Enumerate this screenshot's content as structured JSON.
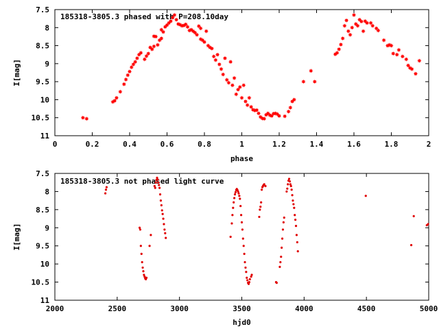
{
  "chart_data": [
    {
      "type": "scatter",
      "title": "185318-3805.3 phased with P=208.10day",
      "xlabel": "phase",
      "ylabel": "I[mag]",
      "xlim": [
        0,
        2
      ],
      "ylim": [
        7.5,
        11
      ],
      "y_inverted": true,
      "xticks": [
        "0",
        "0.2",
        "0.4",
        "0.6",
        "0.8",
        "1",
        "1.2",
        "1.4",
        "1.6",
        "1.8",
        "2"
      ],
      "yticks": [
        "7.5",
        "8",
        "8.5",
        "9",
        "9.5",
        "10",
        "10.5",
        "11"
      ],
      "marker_color": "#ff0000",
      "marker": "star",
      "series": [
        {
          "points": [
            [
              0.15,
              10.5
            ],
            [
              0.17,
              10.53
            ],
            [
              0.31,
              10.06
            ],
            [
              0.32,
              10.03
            ],
            [
              0.33,
              9.95
            ],
            [
              0.35,
              9.78
            ],
            [
              0.37,
              9.57
            ],
            [
              0.38,
              9.44
            ],
            [
              0.39,
              9.32
            ],
            [
              0.4,
              9.22
            ],
            [
              0.41,
              9.1
            ],
            [
              0.42,
              9.02
            ],
            [
              0.43,
              8.95
            ],
            [
              0.44,
              8.85
            ],
            [
              0.45,
              8.75
            ],
            [
              0.46,
              8.7
            ],
            [
              0.48,
              8.88
            ],
            [
              0.49,
              8.79
            ],
            [
              0.5,
              8.72
            ],
            [
              0.51,
              8.55
            ],
            [
              0.52,
              8.6
            ],
            [
              0.53,
              8.52
            ],
            [
              0.53,
              8.24
            ],
            [
              0.54,
              8.25
            ],
            [
              0.55,
              8.48
            ],
            [
              0.56,
              8.35
            ],
            [
              0.57,
              8.3
            ],
            [
              0.57,
              8.06
            ],
            [
              0.58,
              8.12
            ],
            [
              0.59,
              7.98
            ],
            [
              0.6,
              7.93
            ],
            [
              0.61,
              7.87
            ],
            [
              0.62,
              7.82
            ],
            [
              0.63,
              7.72
            ],
            [
              0.64,
              7.65
            ],
            [
              0.65,
              7.78
            ],
            [
              0.66,
              7.9
            ],
            [
              0.67,
              7.92
            ],
            [
              0.68,
              7.95
            ],
            [
              0.69,
              7.94
            ],
            [
              0.7,
              7.91
            ],
            [
              0.71,
              7.98
            ],
            [
              0.72,
              8.08
            ],
            [
              0.73,
              8.06
            ],
            [
              0.74,
              8.1
            ],
            [
              0.75,
              8.14
            ],
            [
              0.76,
              8.2
            ],
            [
              0.77,
              7.96
            ],
            [
              0.78,
              8.32
            ],
            [
              0.78,
              8.02
            ],
            [
              0.79,
              8.35
            ],
            [
              0.8,
              8.4
            ],
            [
              0.81,
              8.1
            ],
            [
              0.82,
              8.5
            ],
            [
              0.83,
              8.55
            ],
            [
              0.84,
              8.58
            ],
            [
              0.85,
              8.8
            ],
            [
              0.86,
              8.9
            ],
            [
              0.87,
              8.75
            ],
            [
              0.88,
              9.02
            ],
            [
              0.89,
              9.15
            ],
            [
              0.9,
              9.3
            ],
            [
              0.91,
              8.85
            ],
            [
              0.92,
              9.45
            ],
            [
              0.93,
              9.53
            ],
            [
              0.94,
              8.95
            ],
            [
              0.95,
              9.6
            ],
            [
              0.96,
              9.4
            ],
            [
              0.97,
              9.85
            ],
            [
              0.98,
              9.72
            ],
            [
              0.99,
              9.65
            ],
            [
              1.0,
              9.95
            ],
            [
              1.01,
              9.6
            ],
            [
              1.02,
              10.05
            ],
            [
              1.03,
              10.15
            ],
            [
              1.04,
              9.95
            ],
            [
              1.05,
              10.2
            ],
            [
              1.06,
              10.28
            ],
            [
              1.07,
              10.3
            ],
            [
              1.08,
              10.29
            ],
            [
              1.09,
              10.38
            ],
            [
              1.1,
              10.48
            ],
            [
              1.11,
              10.52
            ],
            [
              1.12,
              10.53
            ],
            [
              1.13,
              10.42
            ],
            [
              1.14,
              10.38
            ],
            [
              1.15,
              10.43
            ],
            [
              1.16,
              10.45
            ],
            [
              1.17,
              10.39
            ],
            [
              1.18,
              10.38
            ],
            [
              1.19,
              10.4
            ],
            [
              1.2,
              10.45
            ],
            [
              1.23,
              10.46
            ],
            [
              1.25,
              10.33
            ],
            [
              1.26,
              10.22
            ],
            [
              1.27,
              10.05
            ],
            [
              1.28,
              10.0
            ],
            [
              1.33,
              9.5
            ],
            [
              1.37,
              9.2
            ],
            [
              1.39,
              9.5
            ],
            [
              1.5,
              8.74
            ],
            [
              1.51,
              8.7
            ],
            [
              1.52,
              8.6
            ],
            [
              1.53,
              8.47
            ],
            [
              1.54,
              8.3
            ],
            [
              1.55,
              7.95
            ],
            [
              1.56,
              7.8
            ],
            [
              1.57,
              8.1
            ],
            [
              1.58,
              8.2
            ],
            [
              1.59,
              8.0
            ],
            [
              1.6,
              7.65
            ],
            [
              1.61,
              7.9
            ],
            [
              1.62,
              7.95
            ],
            [
              1.63,
              7.78
            ],
            [
              1.64,
              7.83
            ],
            [
              1.65,
              8.1
            ],
            [
              1.66,
              7.82
            ],
            [
              1.67,
              7.87
            ],
            [
              1.69,
              7.87
            ],
            [
              1.7,
              7.95
            ],
            [
              1.72,
              8.02
            ],
            [
              1.73,
              8.08
            ],
            [
              1.76,
              8.35
            ],
            [
              1.78,
              8.5
            ],
            [
              1.79,
              8.48
            ],
            [
              1.8,
              8.5
            ],
            [
              1.81,
              8.72
            ],
            [
              1.83,
              8.75
            ],
            [
              1.84,
              8.62
            ],
            [
              1.86,
              8.8
            ],
            [
              1.88,
              8.88
            ],
            [
              1.89,
              9.05
            ],
            [
              1.9,
              9.12
            ],
            [
              1.91,
              9.15
            ],
            [
              1.93,
              9.28
            ],
            [
              1.95,
              8.92
            ]
          ]
        }
      ]
    },
    {
      "type": "scatter",
      "title": "185318-3805.3 not phased light curve",
      "xlabel": "hjd0",
      "ylabel": "I[mag]",
      "xlim": [
        2000,
        5000
      ],
      "ylim": [
        7.5,
        11
      ],
      "y_inverted": true,
      "xticks": [
        "2000",
        "2500",
        "3000",
        "3500",
        "4000",
        "4500",
        "5000"
      ],
      "yticks": [
        "7.5",
        "8",
        "8.5",
        "9",
        "9.5",
        "10",
        "10.5",
        "11"
      ],
      "marker_color": "#e00000",
      "marker": "dot",
      "series": [
        {
          "points": [
            [
              2405,
              8.05
            ],
            [
              2410,
              7.95
            ],
            [
              2415,
              7.88
            ],
            [
              2680,
              9.0
            ],
            [
              2685,
              9.05
            ],
            [
              2690,
              9.5
            ],
            [
              2695,
              9.72
            ],
            [
              2700,
              9.95
            ],
            [
              2705,
              10.1
            ],
            [
              2710,
              10.2
            ],
            [
              2715,
              10.3
            ],
            [
              2720,
              10.35
            ],
            [
              2725,
              10.4
            ],
            [
              2730,
              10.42
            ],
            [
              2735,
              10.38
            ],
            [
              2760,
              9.5
            ],
            [
              2770,
              9.2
            ],
            [
              2800,
              7.85
            ],
            [
              2805,
              7.9
            ],
            [
              2810,
              7.75
            ],
            [
              2815,
              7.68
            ],
            [
              2820,
              7.62
            ],
            [
              2825,
              7.67
            ],
            [
              2830,
              7.75
            ],
            [
              2835,
              7.82
            ],
            [
              2840,
              7.9
            ],
            [
              2845,
              8.08
            ],
            [
              2850,
              8.25
            ],
            [
              2855,
              8.38
            ],
            [
              2860,
              8.52
            ],
            [
              2865,
              8.62
            ],
            [
              2870,
              8.75
            ],
            [
              2875,
              8.9
            ],
            [
              2880,
              9.05
            ],
            [
              2885,
              9.15
            ],
            [
              2890,
              9.28
            ],
            [
              3410,
              9.25
            ],
            [
              3420,
              8.88
            ],
            [
              3425,
              8.65
            ],
            [
              3430,
              8.45
            ],
            [
              3435,
              8.3
            ],
            [
              3440,
              8.18
            ],
            [
              3445,
              8.08
            ],
            [
              3450,
              8.02
            ],
            [
              3455,
              7.96
            ],
            [
              3460,
              7.93
            ],
            [
              3465,
              7.96
            ],
            [
              3470,
              8.0
            ],
            [
              3475,
              8.05
            ],
            [
              3480,
              8.12
            ],
            [
              3485,
              8.2
            ],
            [
              3490,
              8.4
            ],
            [
              3495,
              8.65
            ],
            [
              3500,
              8.85
            ],
            [
              3505,
              9.05
            ],
            [
              3510,
              9.3
            ],
            [
              3515,
              9.5
            ],
            [
              3520,
              9.72
            ],
            [
              3525,
              9.95
            ],
            [
              3530,
              10.1
            ],
            [
              3535,
              10.22
            ],
            [
              3540,
              10.38
            ],
            [
              3545,
              10.45
            ],
            [
              3550,
              10.52
            ],
            [
              3555,
              10.55
            ],
            [
              3560,
              10.5
            ],
            [
              3565,
              10.42
            ],
            [
              3575,
              10.35
            ],
            [
              3580,
              10.3
            ],
            [
              3640,
              8.7
            ],
            [
              3645,
              8.5
            ],
            [
              3650,
              8.42
            ],
            [
              3655,
              8.3
            ],
            [
              3660,
              7.95
            ],
            [
              3665,
              7.88
            ],
            [
              3670,
              7.85
            ],
            [
              3675,
              7.82
            ],
            [
              3680,
              7.8
            ],
            [
              3690,
              7.85
            ],
            [
              3775,
              10.5
            ],
            [
              3780,
              10.52
            ],
            [
              3805,
              10.08
            ],
            [
              3810,
              9.95
            ],
            [
              3815,
              9.8
            ],
            [
              3820,
              9.55
            ],
            [
              3825,
              9.3
            ],
            [
              3830,
              9.05
            ],
            [
              3835,
              8.85
            ],
            [
              3840,
              8.72
            ],
            [
              3860,
              8.0
            ],
            [
              3865,
              7.92
            ],
            [
              3870,
              7.8
            ],
            [
              3875,
              7.7
            ],
            [
              3880,
              7.65
            ],
            [
              3885,
              7.72
            ],
            [
              3890,
              7.8
            ],
            [
              3895,
              7.85
            ],
            [
              3900,
              7.95
            ],
            [
              3905,
              8.1
            ],
            [
              3910,
              8.25
            ],
            [
              3915,
              8.35
            ],
            [
              3920,
              8.45
            ],
            [
              3925,
              8.65
            ],
            [
              3930,
              8.78
            ],
            [
              3935,
              8.95
            ],
            [
              3940,
              9.2
            ],
            [
              3945,
              9.4
            ],
            [
              3950,
              9.65
            ],
            [
              4495,
              8.12
            ],
            [
              4860,
              9.48
            ],
            [
              4880,
              8.68
            ],
            [
              4985,
              8.93
            ],
            [
              4995,
              8.9
            ]
          ]
        }
      ]
    }
  ]
}
